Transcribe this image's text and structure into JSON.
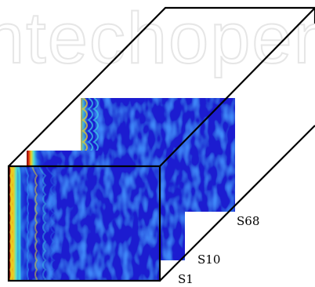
{
  "watermark": {
    "text": "ntechopen"
  },
  "slices": [
    {
      "label": "S68"
    },
    {
      "label": "S10"
    },
    {
      "label": "S1"
    }
  ],
  "colors": {
    "background": "#ffffff",
    "outline": "#000000",
    "map_low": "#1418c8",
    "map_mid": "#1fb8f0",
    "map_high": "#9a0e0e"
  }
}
